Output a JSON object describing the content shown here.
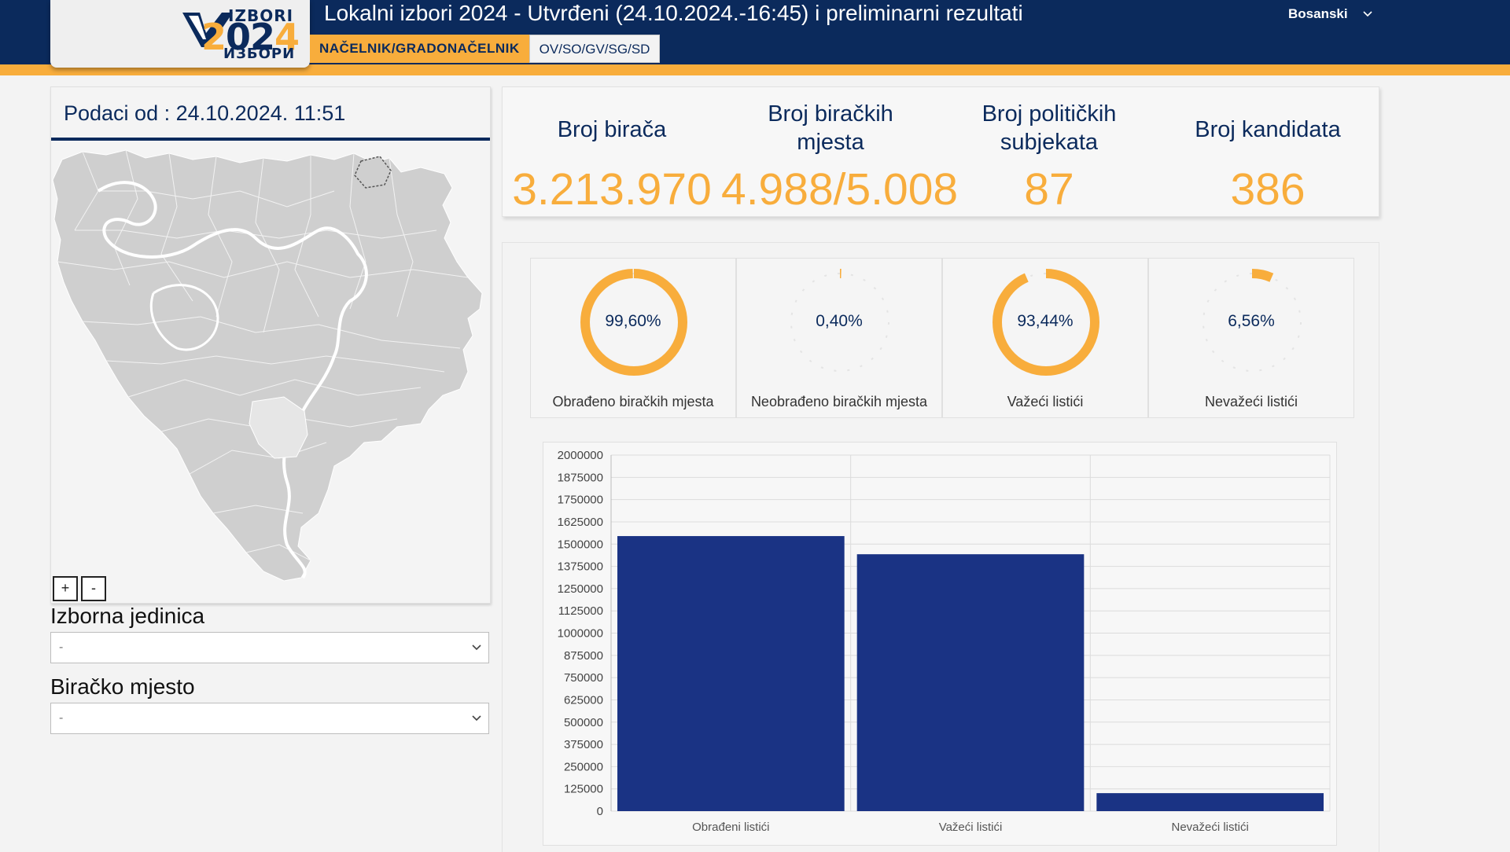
{
  "header": {
    "logo_top": "IZBORI",
    "logo_year_a": "2",
    "logo_year_b": "0",
    "logo_year_c": "2",
    "logo_year_d": "4",
    "logo_bottom": "ИЗБОРИ",
    "title": "Lokalni izbori 2024 - Utvrđeni (24.10.2024.-16:45) i preliminarni rezultati",
    "tabs": [
      {
        "label": "NAČELNIK/GRADONAČELNIK",
        "active": true
      },
      {
        "label": "OV/SO/GV/SG/SD",
        "active": false
      }
    ],
    "language": "Bosanski"
  },
  "left": {
    "data_date": "Podaci od : 24.10.2024. 11:51",
    "zoom_in": "+",
    "zoom_out": "-",
    "unit_label": "Izborna jedinica",
    "unit_value": "-",
    "station_label": "Biračko mjesto",
    "station_value": "-"
  },
  "stats": [
    {
      "label_line1": "Broj birača",
      "label_line2": "",
      "value": "3.213.970"
    },
    {
      "label_line1": "Broj biračkih",
      "label_line2": "mjesta",
      "value": "4.988/5.008"
    },
    {
      "label_line1": "Broj političkih",
      "label_line2": "subjekata",
      "value": "87"
    },
    {
      "label_line1": "Broj kandidata",
      "label_line2": "",
      "value": "386"
    }
  ],
  "donuts": [
    {
      "percent_text": "99,60%",
      "fraction": 0.996,
      "label": "Obrađeno biračkih mjesta"
    },
    {
      "percent_text": "0,40%",
      "fraction": 0.004,
      "label": "Neobrađeno biračkih mjesta"
    },
    {
      "percent_text": "93,44%",
      "fraction": 0.9344,
      "label": "Važeći listići"
    },
    {
      "percent_text": "6,56%",
      "fraction": 0.0656,
      "label": "Nevažeći listići"
    }
  ],
  "colors": {
    "navy": "#0b2a5c",
    "accent": "#f8ad3c",
    "bar": "#1a3384",
    "map_fill": "#cfcfcf",
    "map_highlight": "#e2e2e2"
  },
  "chart_data": {
    "type": "bar",
    "categories": [
      "Obrađeni listići",
      "Važeći listići",
      "Nevažeći listići"
    ],
    "values": [
      1545000,
      1443000,
      101000
    ],
    "ylim": [
      0,
      2000000
    ],
    "yticks": [
      0,
      125000,
      250000,
      375000,
      500000,
      625000,
      750000,
      875000,
      1000000,
      1125000,
      1250000,
      1375000,
      1500000,
      1625000,
      1750000,
      1875000,
      2000000
    ],
    "title": "",
    "xlabel": "",
    "ylabel": "",
    "grid": true
  }
}
